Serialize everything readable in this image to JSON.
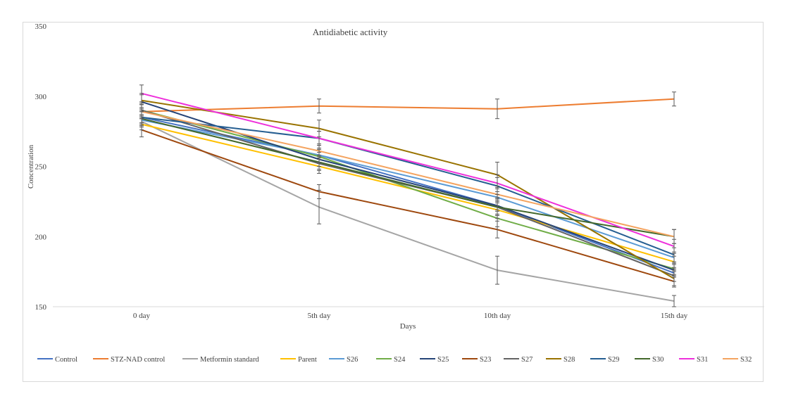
{
  "chart_data": {
    "type": "line",
    "title": "Antidiabetic activity",
    "xlabel": "Days",
    "ylabel": "Concentration",
    "categories": [
      "0 day",
      "5th day",
      "10th day",
      "15th day"
    ],
    "ylim": [
      150,
      350
    ],
    "yticks": [
      150,
      200,
      250,
      300,
      350
    ],
    "grid": false,
    "legend_position": "bottom",
    "series": [
      {
        "name": "Control",
        "color": "#4472C4",
        "values": [
          285,
          258,
          222,
          174
        ],
        "err": [
          4,
          5,
          4,
          3
        ]
      },
      {
        "name": "STZ-NAD control",
        "color": "#ED7D31",
        "values": [
          289,
          293,
          291,
          298
        ],
        "err": [
          5,
          5,
          7,
          5
        ]
      },
      {
        "name": "Metformin standard",
        "color": "#A5A5A5",
        "values": [
          282,
          221,
          176,
          154
        ],
        "err": [
          4,
          12,
          10,
          4
        ]
      },
      {
        "name": "Parent",
        "color": "#FFC000",
        "values": [
          280,
          250,
          219,
          182
        ],
        "err": [
          4,
          5,
          6,
          4
        ]
      },
      {
        "name": "S26",
        "color": "#5B9BD5",
        "values": [
          283,
          258,
          228,
          185
        ],
        "err": [
          4,
          5,
          6,
          4
        ]
      },
      {
        "name": "S24",
        "color": "#70AD47",
        "values": [
          290,
          257,
          213,
          177
        ],
        "err": [
          4,
          5,
          6,
          4
        ]
      },
      {
        "name": "S25",
        "color": "#264478",
        "values": [
          296,
          255,
          222,
          176
        ],
        "err": [
          5,
          5,
          6,
          4
        ]
      },
      {
        "name": "S23",
        "color": "#9E480E",
        "values": [
          276,
          232,
          205,
          168
        ],
        "err": [
          5,
          5,
          6,
          4
        ]
      },
      {
        "name": "S27",
        "color": "#636363",
        "values": [
          290,
          252,
          221,
          172
        ],
        "err": [
          5,
          5,
          6,
          4
        ]
      },
      {
        "name": "S28",
        "color": "#997300",
        "values": [
          297,
          277,
          244,
          170
        ],
        "err": [
          5,
          6,
          9,
          5
        ]
      },
      {
        "name": "S29",
        "color": "#255E91",
        "values": [
          285,
          270,
          236,
          187
        ],
        "err": [
          5,
          5,
          6,
          5
        ]
      },
      {
        "name": "S30",
        "color": "#43682B",
        "values": [
          284,
          253,
          221,
          200
        ],
        "err": [
          5,
          5,
          6,
          5
        ]
      },
      {
        "name": "S31",
        "color": "#EE30DB",
        "values": [
          302,
          270,
          238,
          193
        ],
        "err": [
          6,
          5,
          6,
          5
        ]
      },
      {
        "name": "S32",
        "color": "#F4A460",
        "values": [
          289,
          261,
          230,
          200
        ],
        "err": [
          5,
          5,
          6,
          5
        ]
      }
    ]
  }
}
